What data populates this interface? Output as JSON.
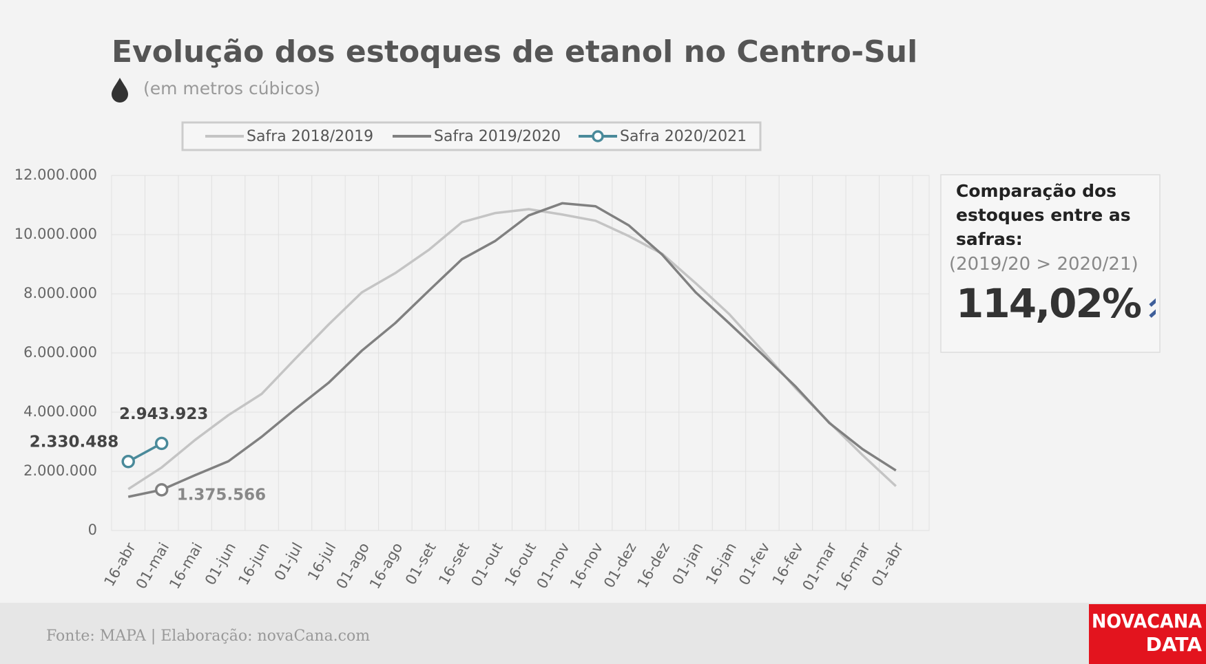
{
  "chart_data": {
    "type": "line",
    "title": "Evolução dos estoques de etanol no Centro-Sul",
    "subtitle": "(em metros cúbicos)",
    "categories": [
      "16-abr",
      "01-mai",
      "16-mai",
      "01-jun",
      "16-jun",
      "01-jul",
      "16-jul",
      "01-ago",
      "16-ago",
      "01-set",
      "16-set",
      "01-out",
      "16-out",
      "01-nov",
      "16-nov",
      "01-dez",
      "16-dez",
      "01-jan",
      "16-jan",
      "01-fev",
      "16-fev",
      "01-mar",
      "16-mar",
      "01-abr"
    ],
    "series": [
      {
        "name": "Safra 2018/2019",
        "color": "#c4c4c4",
        "values": [
          1400000,
          2130000,
          3060000,
          3900000,
          4620000,
          5800000,
          6960000,
          8050000,
          8700000,
          9480000,
          10420000,
          10730000,
          10860000,
          10680000,
          10470000,
          9950000,
          9350000,
          8360000,
          7320000,
          6080000,
          4800000,
          3660000,
          2550000,
          1500000
        ]
      },
      {
        "name": "Safra 2019/2020",
        "color": "#808080",
        "values": [
          1140000,
          1375566,
          1870000,
          2340000,
          3170000,
          4100000,
          4990000,
          6080000,
          7010000,
          8100000,
          9170000,
          9790000,
          10650000,
          11060000,
          10960000,
          10310000,
          9320000,
          8050000,
          7010000,
          5950000,
          4860000,
          3640000,
          2750000,
          2030000
        ],
        "value_labels": [
          null,
          "1.375.566",
          null,
          null,
          null,
          null,
          null,
          null,
          null,
          null,
          null,
          null,
          null,
          null,
          null,
          null,
          null,
          null,
          null,
          null,
          null,
          null,
          null,
          null
        ]
      },
      {
        "name": "Safra 2020/2021",
        "color": "#4a8a9a",
        "marker": true,
        "values": [
          2330488,
          2943923,
          null,
          null,
          null,
          null,
          null,
          null,
          null,
          null,
          null,
          null,
          null,
          null,
          null,
          null,
          null,
          null,
          null,
          null,
          null,
          null,
          null,
          null
        ],
        "value_labels": [
          "2.330.488",
          "2.943.923",
          null,
          null,
          null,
          null,
          null,
          null,
          null,
          null,
          null,
          null,
          null,
          null,
          null,
          null,
          null,
          null,
          null,
          null,
          null,
          null,
          null,
          null
        ]
      }
    ],
    "ylim": [
      0,
      12000000
    ],
    "yticks": [
      0,
      {
        "value": 2000000,
        "label": "2.000.000"
      },
      {
        "value": 4000000,
        "label": "4.000.000"
      },
      {
        "value": 6000000,
        "label": "6.000.000"
      },
      {
        "value": 8000000,
        "label": "8.000.000"
      },
      {
        "value": 10000000,
        "label": "10.000.000"
      },
      {
        "value": 12000000,
        "label": "12.000.000"
      }
    ],
    "grid": true,
    "legend": "top"
  },
  "panel": {
    "heading": "Comparação dos estoques entre as safras:",
    "note": "(2019/20 > 2020/21)",
    "value": "114,02%"
  },
  "footer": "Fonte: MAPA  | Elaboração: novaCana.com",
  "logo": [
    "NOVACANA",
    "DATA"
  ]
}
